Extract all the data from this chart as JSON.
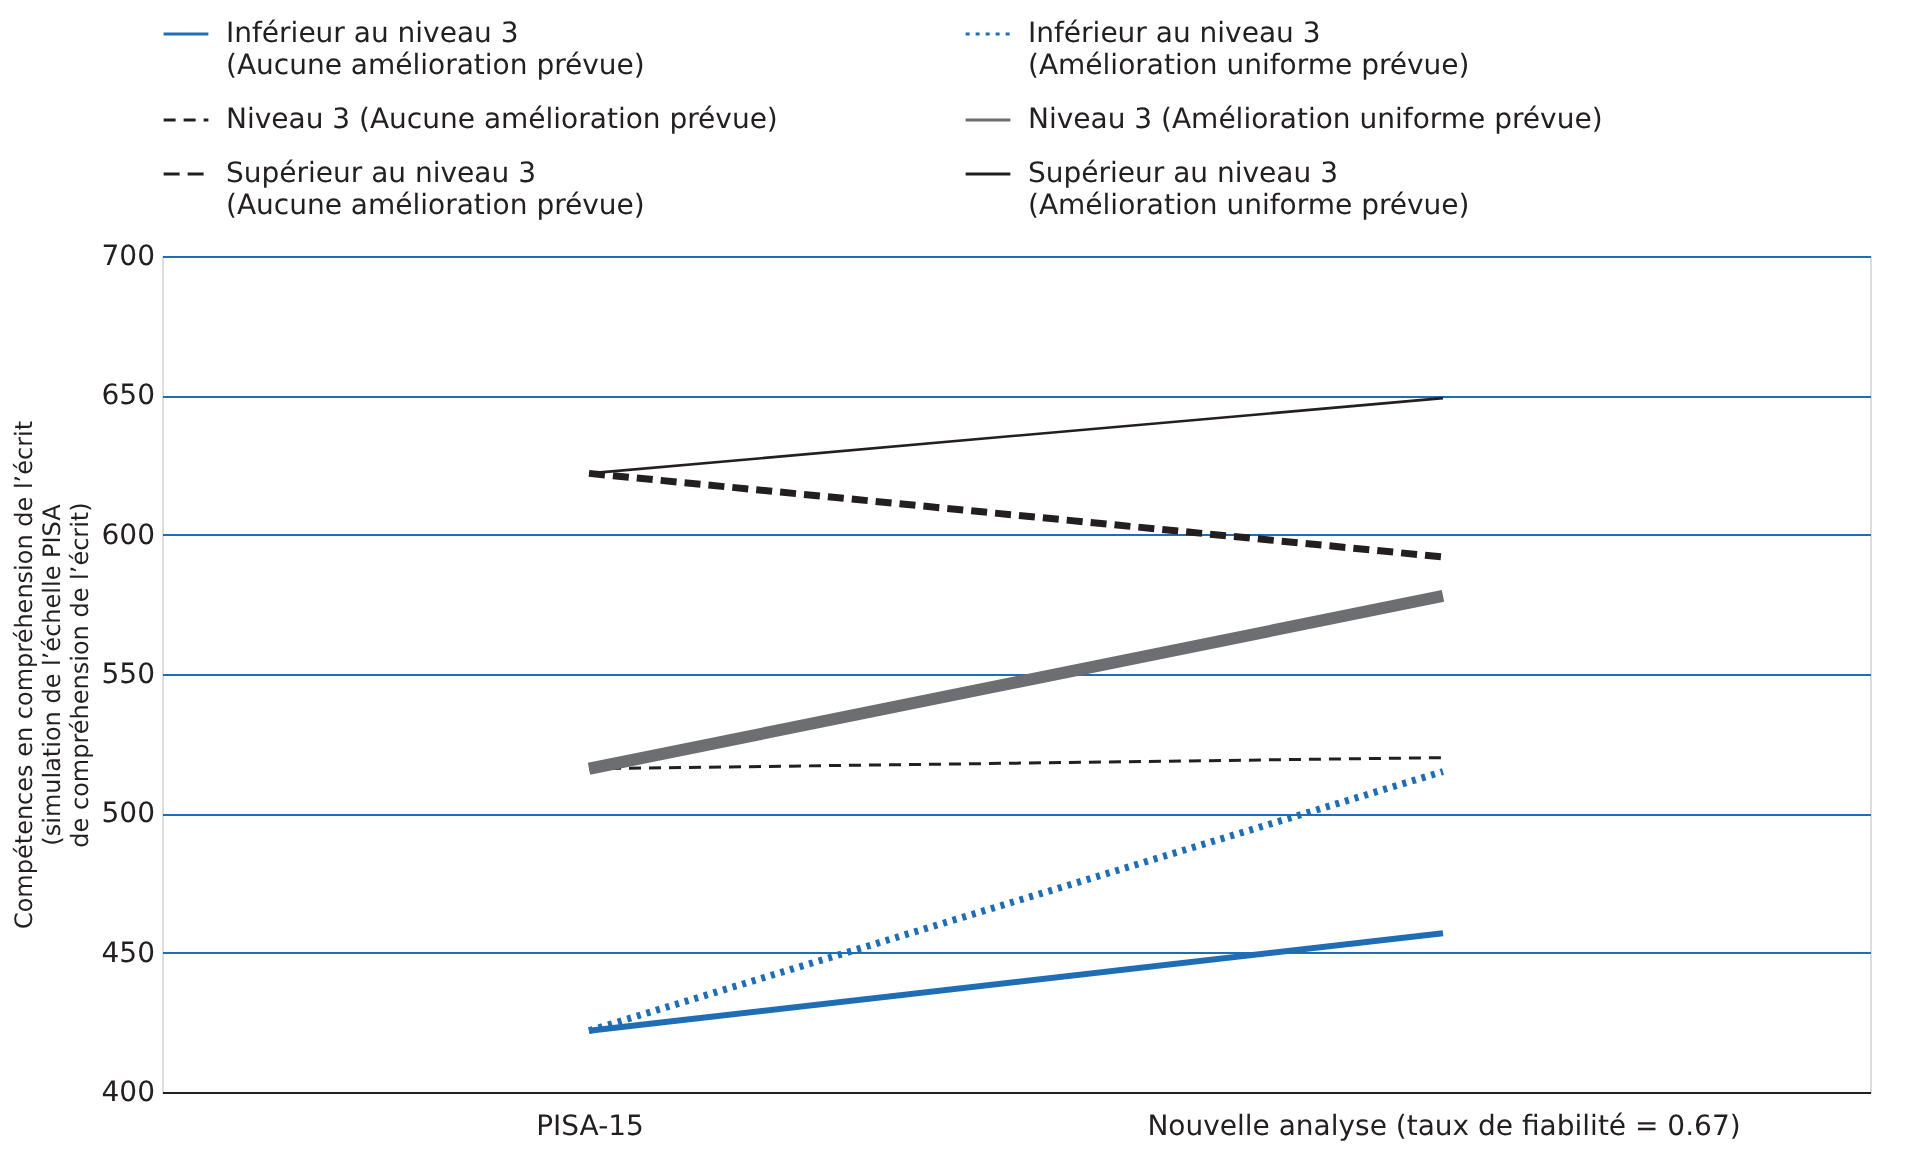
{
  "chart_data": {
    "type": "line",
    "ylabel": "Compétences en compréhension de l’écrit\n(simulation de l’échelle PISA\nde compréhension de l’écrit)",
    "categories": [
      "PISA-15",
      "Nouvelle analyse (taux de fiabilité = 0.67)"
    ],
    "ylim": [
      400,
      700
    ],
    "yticks": [
      400,
      450,
      500,
      550,
      600,
      650,
      700
    ],
    "grid": "y",
    "legend": "top",
    "marker": "none",
    "series": [
      {
        "name": "Inférieur au niveau 3\n(Aucune amélioration prévue)",
        "color": "#1f6db5",
        "line_style": "solid",
        "values": [
          422,
          457
        ]
      },
      {
        "name": "Inférieur au niveau 3\n(Amélioration uniforme prévue)",
        "color": "#1f6db5",
        "line_style": "dotted",
        "values": [
          422,
          515
        ]
      },
      {
        "name": "Niveau 3 (Aucune amélioration prévue)",
        "color": "#231f20",
        "line_style": "dashed",
        "values": [
          516,
          520
        ]
      },
      {
        "name": "Niveau 3 (Amélioration uniforme prévue)",
        "color": "#6d6e71",
        "line_style": "solid",
        "values": [
          516,
          578
        ]
      },
      {
        "name": "Supérieur au niveau 3\n(Aucune amélioration prévue)",
        "color": "#231f20",
        "line_style": "dashed",
        "values": [
          622,
          592
        ]
      },
      {
        "name": "Supérieur au niveau 3\n(Amélioration uniforme prévue)",
        "color": "#231f20",
        "line_style": "solid",
        "values": [
          622,
          649
        ]
      }
    ]
  }
}
